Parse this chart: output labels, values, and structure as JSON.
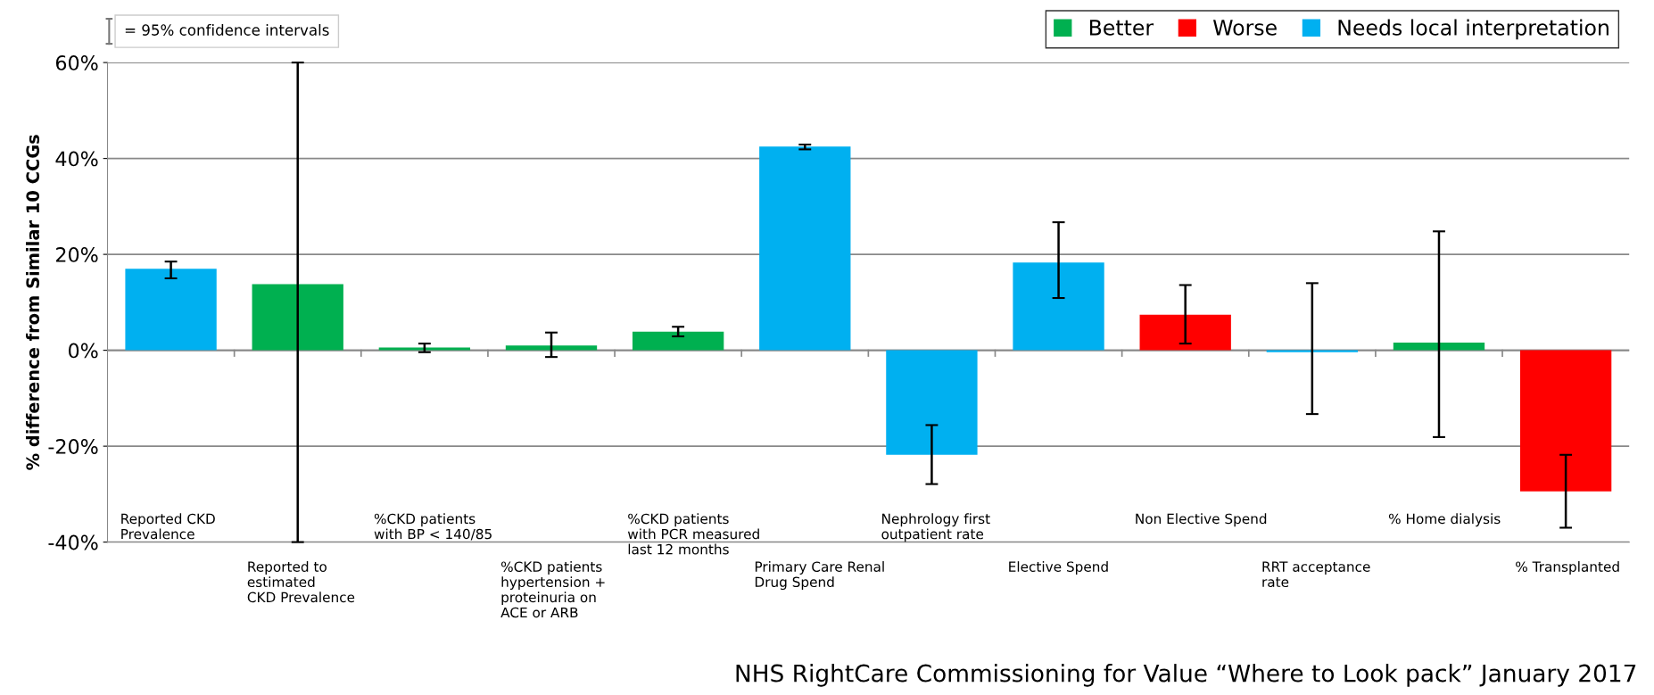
{
  "chart_data": {
    "type": "bar",
    "ylabel": "% difference from Similar 10 CCGs",
    "categories": [
      "Reported CKD\nPrevalence",
      "Reported to\nestimated\nCKD Prevalence",
      "%CKD patients\nwith BP < 140/85",
      "%CKD patients\nhypertension +\nproteinuria on\nACE or ARB",
      "%CKD patients\nwith PCR measured\nlast 12 months",
      "Primary Care Renal\nDrug Spend",
      "Nephrology first\noutpatient rate",
      "Elective Spend",
      "Non Elective Spend",
      "RRT acceptance\nrate",
      "% Home dialysis",
      "% Transplanted"
    ],
    "series": [
      {
        "name": "Better",
        "color": "#00b050",
        "values": [
          null,
          13.8,
          0.6,
          1.0,
          3.9,
          null,
          null,
          null,
          null,
          null,
          1.6,
          null
        ],
        "errors": [
          null,
          [
            -40,
            60
          ],
          [
            -0.4,
            1.4
          ],
          [
            -1.4,
            3.7
          ],
          [
            2.9,
            4.9
          ],
          null,
          null,
          null,
          null,
          null,
          [
            -18.1,
            24.8
          ],
          null
        ]
      },
      {
        "name": "Worse",
        "color": "#ff0000",
        "values": [
          null,
          null,
          null,
          null,
          null,
          null,
          null,
          null,
          7.4,
          null,
          null,
          -29.4
        ],
        "errors": [
          null,
          null,
          null,
          null,
          null,
          null,
          null,
          null,
          [
            1.4,
            13.6
          ],
          null,
          null,
          [
            -37,
            -21.8
          ]
        ]
      },
      {
        "name": "Needs local interpretation",
        "color": "#00b0f0",
        "values": [
          17.0,
          null,
          null,
          null,
          null,
          42.5,
          -21.8,
          18.3,
          null,
          -0.4,
          null,
          null
        ],
        "errors": [
          [
            15.0,
            18.5
          ],
          null,
          null,
          null,
          null,
          [
            41.9,
            42.9
          ],
          [
            -27.9,
            -15.6
          ],
          [
            10.9,
            26.7
          ],
          null,
          [
            -13.3,
            14.0
          ],
          null,
          null
        ]
      }
    ],
    "ylim": [
      -40,
      60
    ],
    "yticks": [
      {
        "value": -40,
        "label": "-40%"
      },
      {
        "value": -20,
        "label": "-20%"
      },
      {
        "value": 0,
        "label": "0%"
      },
      {
        "value": 20,
        "label": "20%"
      },
      {
        "value": 40,
        "label": "40%"
      },
      {
        "value": 60,
        "label": "60%"
      }
    ],
    "grid": "y",
    "legend": "top right",
    "annotations": [
      "= 95% confidence intervals",
      "NHS RightCare Commissioning for Value “Where to Look pack” January 2017"
    ]
  }
}
